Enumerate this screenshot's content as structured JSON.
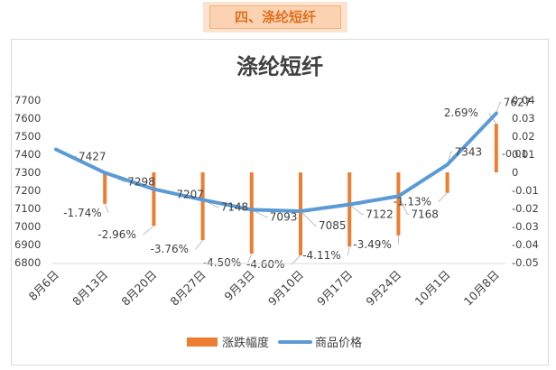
{
  "header": {
    "label": "四、涤纶短纤"
  },
  "chart_data": {
    "type": "bar+line",
    "title": "涤纶短纤",
    "categories": [
      "8月6日",
      "8月13日",
      "8月20日",
      "8月27日",
      "9月3日",
      "9月10日",
      "9月17日",
      "9月24日",
      "10月1日",
      "10月8日"
    ],
    "series": [
      {
        "name": "涨跌幅度",
        "type": "bar",
        "axis": "right",
        "values": [
          0,
          -0.0174,
          -0.0296,
          -0.0376,
          -0.045,
          -0.046,
          -0.0411,
          -0.0349,
          -0.0113,
          0.0269
        ],
        "labels": [
          "",
          "-1.74%",
          "-2.96%",
          "-3.76%",
          "-4.50%",
          "-4.60%",
          "-4.11%",
          "-3.49%",
          "-1.13%",
          "2.69%"
        ],
        "color": "#ed7d31"
      },
      {
        "name": "商品价格",
        "type": "line",
        "axis": "left",
        "values": [
          7427,
          7298,
          7207,
          7148,
          7093,
          7085,
          7122,
          7168,
          7343,
          7627
        ],
        "labels": [
          "7427",
          "7298",
          "7207",
          "7148",
          "7093",
          "7085",
          "7122",
          "7168",
          "7343",
          "7627"
        ],
        "color": "#5b9bd5"
      }
    ],
    "y_left": {
      "min": 6800,
      "max": 7700,
      "ticks": [
        "6800",
        "6900",
        "7000",
        "7100",
        "7200",
        "7300",
        "7400",
        "7500",
        "7600",
        "7700"
      ]
    },
    "y_right": {
      "min": -0.05,
      "max": 0.04,
      "ticks": [
        "-0.05",
        "-0.04",
        "-0.03",
        "-0.02",
        "-0.01",
        "0",
        "0.01",
        "0.02",
        "0.03",
        "0.04"
      ]
    },
    "extra_label": "-0.01",
    "grid": false,
    "legend": "bottom"
  }
}
